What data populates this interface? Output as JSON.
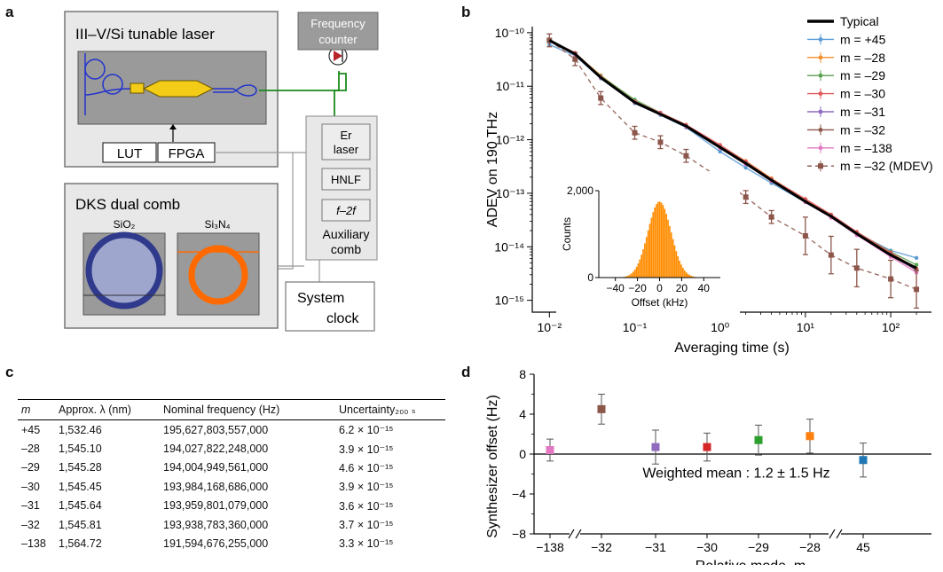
{
  "panels": {
    "a": "a",
    "b": "b",
    "c": "c",
    "d": "d"
  },
  "panel_a": {
    "laser_title": "III–V/Si tunable laser",
    "lut": "LUT",
    "fpga": "FPGA",
    "freq_counter_l1": "Frequency",
    "freq_counter_l2": "counter",
    "dks_title": "DKS dual comb",
    "sio2": "SiO₂",
    "si3n4": "Si₃N₄",
    "er_laser_l1": "Er",
    "er_laser_l2": "laser",
    "hnlf": "HNLF",
    "f2f": "f–2f",
    "aux_l1": "Auxiliary",
    "aux_l2": "comb",
    "clock_l1": "System",
    "clock_l2": "clock"
  },
  "panel_c": {
    "headers": {
      "m": "m",
      "lambda": "Approx. λ (nm)",
      "freq": "Nominal frequency (Hz)",
      "unc": "Uncertainty₂₀₀ ₛ"
    },
    "rows": [
      {
        "m": "+45",
        "lambda": "1,532.46",
        "freq": "195,627,803,557,000",
        "unc": "6.2 × 10⁻¹⁵"
      },
      {
        "m": "–28",
        "lambda": "1,545.10",
        "freq": "194,027,822,248,000",
        "unc": "3.9 × 10⁻¹⁵"
      },
      {
        "m": "–29",
        "lambda": "1,545.28",
        "freq": "194,004,949,561,000",
        "unc": "4.6 × 10⁻¹⁵"
      },
      {
        "m": "–30",
        "lambda": "1,545.45",
        "freq": "193,984,168,686,000",
        "unc": "3.9 × 10⁻¹⁵"
      },
      {
        "m": "–31",
        "lambda": "1,545.64",
        "freq": "193,959,801,079,000",
        "unc": "3.6 × 10⁻¹⁵"
      },
      {
        "m": "–32",
        "lambda": "1,545.81",
        "freq": "193,938,783,360,000",
        "unc": "3.7 × 10⁻¹⁵"
      },
      {
        "m": "–138",
        "lambda": "1,564.72",
        "freq": "191,594,676,255,000",
        "unc": "3.3 × 10⁻¹⁵"
      }
    ]
  },
  "chart_data": [
    {
      "type": "line",
      "xlabel": "Averaging time (s)",
      "ylabel": "ADEV on 190 THz",
      "xscale": "log",
      "yscale": "log",
      "xlim": [
        0.0063,
        300
      ],
      "ylim": [
        6e-16,
        1.3e-10
      ],
      "xticks": [
        {
          "v": 0.01,
          "label": "10⁻²"
        },
        {
          "v": 0.1,
          "label": "10⁻¹"
        },
        {
          "v": 1,
          "label": "10⁰"
        },
        {
          "v": 10,
          "label": "10¹"
        },
        {
          "v": 100,
          "label": "10²"
        }
      ],
      "yticks": [
        {
          "v": 1e-15,
          "label": "10⁻¹⁵"
        },
        {
          "v": 1e-14,
          "label": "10⁻¹⁴"
        },
        {
          "v": 1e-13,
          "label": "10⁻¹³"
        },
        {
          "v": 1e-12,
          "label": "10⁻¹²"
        },
        {
          "v": 1e-11,
          "label": "10⁻¹¹"
        },
        {
          "v": 1e-10,
          "label": "10⁻¹⁰"
        }
      ],
      "legend_position": "top-right",
      "x": [
        0.01,
        0.02,
        0.04,
        0.1,
        0.2,
        0.4,
        1,
        2,
        4,
        10,
        20,
        40,
        100,
        200
      ],
      "series": [
        {
          "name": "Typical",
          "color": "#000000",
          "style": "thick",
          "values": [
            7.2e-11,
            4e-11,
            1.45e-11,
            5e-12,
            3e-12,
            1.8e-12,
            7.2e-13,
            3.6e-13,
            1.75e-13,
            7e-14,
            3.7e-14,
            1.75e-14,
            7e-15,
            4e-15
          ]
        },
        {
          "name": "m = +45",
          "color": "#5b9bd5",
          "values": [
            6e-11,
            3.7e-11,
            1.4e-11,
            4.8e-12,
            2.9e-12,
            1.7e-12,
            6e-13,
            3e-13,
            1.55e-13,
            6.8e-14,
            3.6e-14,
            1.8e-14,
            8.5e-15,
            6.2e-15
          ]
        },
        {
          "name": "m = –28",
          "color": "#f28e2b",
          "values": [
            7e-11,
            4.1e-11,
            1.6e-11,
            5.3e-12,
            3.1e-12,
            1.9e-12,
            7.6e-13,
            4e-13,
            1.9e-13,
            7.5e-14,
            3.9e-14,
            1.8e-14,
            7.5e-15,
            3.9e-15
          ]
        },
        {
          "name": "m = –29",
          "color": "#59a14f",
          "values": [
            7.1e-11,
            4e-11,
            1.55e-11,
            5.6e-12,
            3.2e-12,
            1.85e-12,
            7.4e-13,
            3.8e-13,
            1.8e-13,
            7.2e-14,
            3.8e-14,
            1.85e-14,
            8e-15,
            4.6e-15
          ]
        },
        {
          "name": "m = –30",
          "color": "#e15759",
          "values": [
            7.3e-11,
            4.2e-11,
            1.5e-11,
            5.2e-12,
            3.2e-12,
            1.9e-12,
            8e-13,
            3.9e-13,
            1.85e-13,
            7.8e-14,
            4e-14,
            1.9e-14,
            7.8e-15,
            3.9e-15
          ]
        },
        {
          "name": "m = –31",
          "color": "#8e6bbf",
          "values": [
            6.9e-11,
            4e-11,
            1.45e-11,
            5e-12,
            3e-12,
            1.8e-12,
            7e-13,
            3.5e-13,
            1.7e-13,
            7e-14,
            3.6e-14,
            1.7e-14,
            7e-15,
            3.6e-15
          ]
        },
        {
          "name": "m = –32",
          "color": "#8c564b",
          "values": [
            7.2e-11,
            4e-11,
            1.45e-11,
            5e-12,
            3e-12,
            1.8e-12,
            7.2e-13,
            3.6e-13,
            1.75e-13,
            7e-14,
            3.7e-14,
            1.75e-14,
            7.2e-15,
            3.7e-15
          ]
        },
        {
          "name": "m = –138",
          "color": "#e377c2",
          "values": [
            7e-11,
            3.9e-11,
            1.45e-11,
            5e-12,
            3e-12,
            1.75e-12,
            7e-13,
            3.5e-13,
            1.7e-13,
            6.8e-14,
            3.5e-14,
            1.65e-14,
            6.5e-15,
            3.3e-15
          ]
        },
        {
          "name": "m = –32 (MDEV)",
          "color": "#8c564b",
          "style": "dashed",
          "values": [
            7.2e-11,
            3.2e-11,
            6e-12,
            1.35e-12,
            9e-13,
            5e-13,
            1.9e-13,
            8.5e-14,
            3.6e-14,
            1.6e-14,
            7e-15,
            4e-15,
            2.5e-15,
            1.6e-15
          ]
        }
      ],
      "inset": {
        "type": "histogram",
        "xlabel": "Offset (kHz)",
        "ylabel": "Counts",
        "xlim": [
          -55,
          55
        ],
        "ylim": [
          0,
          2000
        ],
        "xticks": [
          {
            "v": -40,
            "label": "−40"
          },
          {
            "v": -20,
            "label": "−20"
          },
          {
            "v": 0,
            "label": "0"
          },
          {
            "v": 20,
            "label": "20"
          },
          {
            "v": 40,
            "label": "40"
          }
        ],
        "yticks": [
          {
            "v": 0,
            "label": "0"
          },
          {
            "v": 2000,
            "label": "2,000"
          }
        ],
        "color": "#ff8c00",
        "mean": 0,
        "sigma": 10.5,
        "peak": 1750
      }
    },
    {
      "type": "scatter",
      "xlabel": "Relative mode, m",
      "ylabel": "Synthesizer offset (Hz)",
      "ylim": [
        -8,
        8
      ],
      "yticks": [
        {
          "v": -8,
          "label": "−8"
        },
        {
          "v": -4,
          "label": "−4"
        },
        {
          "v": 0,
          "label": "0"
        },
        {
          "v": 4,
          "label": "4"
        },
        {
          "v": 8,
          "label": "8"
        }
      ],
      "categories": [
        "−138",
        "−32",
        "−31",
        "−30",
        "−29",
        "−28",
        "45"
      ],
      "points": [
        {
          "x": "−138",
          "y": 0.4,
          "err": 1.1,
          "color": "#e377c2"
        },
        {
          "x": "−32",
          "y": 4.5,
          "err": 1.5,
          "color": "#8c564b"
        },
        {
          "x": "−31",
          "y": 0.7,
          "err": 1.7,
          "color": "#8e6bbf"
        },
        {
          "x": "−30",
          "y": 0.7,
          "err": 1.4,
          "color": "#d62728"
        },
        {
          "x": "−29",
          "y": 1.4,
          "err": 1.5,
          "color": "#2ca02c"
        },
        {
          "x": "−28",
          "y": 1.8,
          "err": 1.7,
          "color": "#ff7f0e"
        },
        {
          "x": "45",
          "y": -0.6,
          "err": 1.7,
          "color": "#1f77b4"
        }
      ],
      "annotation": "Weighted mean : 1.2 ± 1.5 Hz",
      "axis_breaks": true
    }
  ]
}
